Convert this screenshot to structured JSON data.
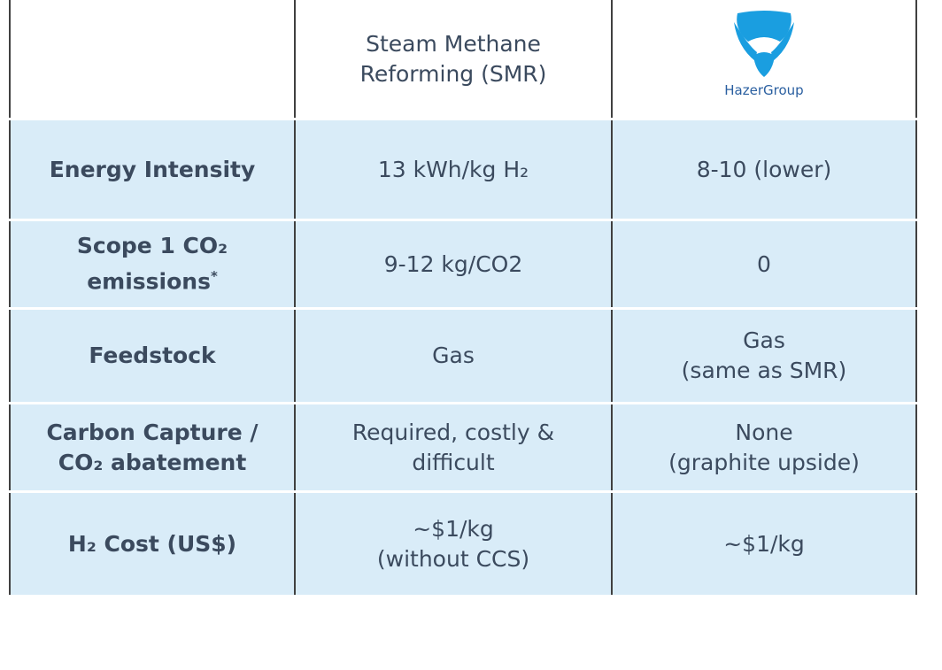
{
  "header": {
    "columns": [
      {
        "lines": [
          "Steam Methane",
          "Reforming (SMR)"
        ]
      },
      {
        "logo": "HazerGroup"
      }
    ]
  },
  "rows": [
    {
      "label": [
        "Energy Intensity"
      ],
      "cells": [
        [
          "13 kWh/kg H₂"
        ],
        [
          "8-10 (lower)"
        ]
      ]
    },
    {
      "label": [
        "Scope 1 CO₂",
        "emissions"
      ],
      "label_note": "*",
      "cells": [
        [
          "9-12 kg/CO2"
        ],
        [
          "0"
        ]
      ]
    },
    {
      "label": [
        "Feedstock"
      ],
      "cells": [
        [
          "Gas"
        ],
        [
          "Gas",
          "(same as SMR)"
        ]
      ]
    },
    {
      "label": [
        "Carbon Capture /",
        "CO₂ abatement"
      ],
      "cells": [
        [
          "Required, costly &",
          "difficult"
        ],
        [
          "None",
          "(graphite upside)"
        ]
      ]
    },
    {
      "label": [
        "H₂ Cost (US$)"
      ],
      "cells": [
        [
          "~$1/kg",
          "(without CCS)"
        ],
        [
          "~$1/kg"
        ]
      ]
    }
  ]
}
